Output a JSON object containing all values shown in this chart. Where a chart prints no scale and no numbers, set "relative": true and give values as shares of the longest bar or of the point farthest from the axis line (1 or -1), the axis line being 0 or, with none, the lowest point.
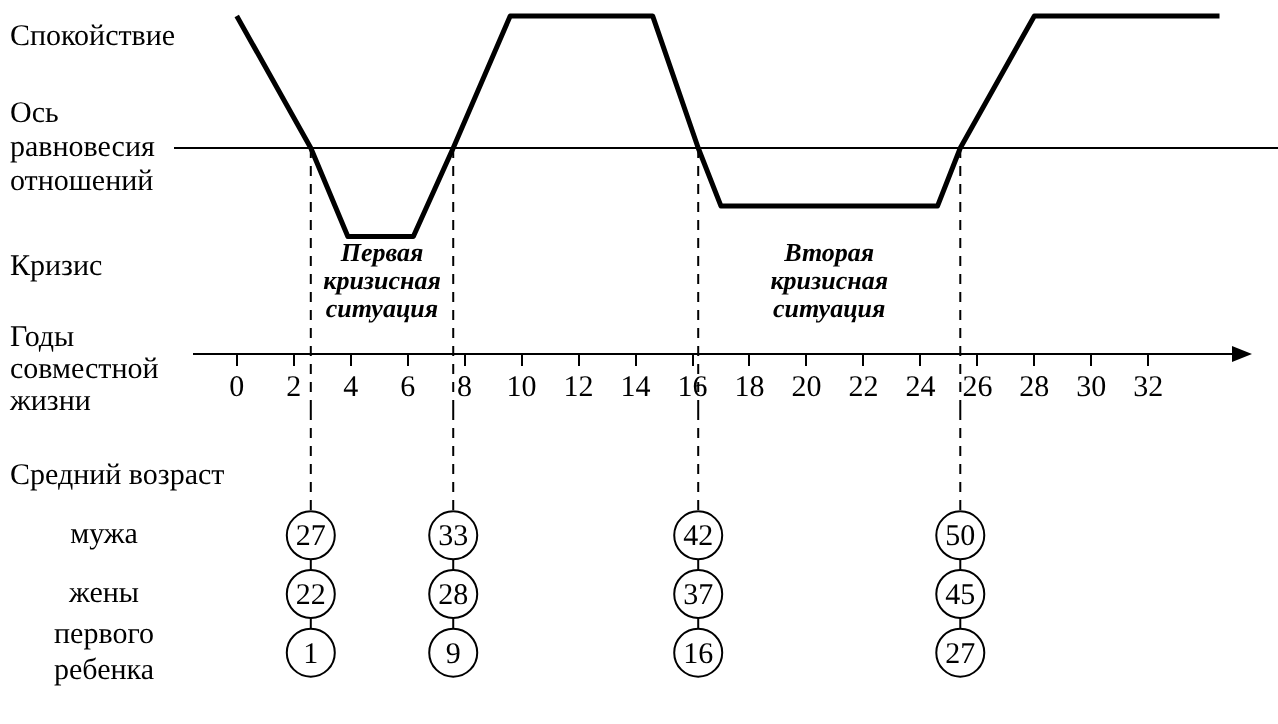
{
  "chart_data": [
    {
      "type": "line",
      "xlabel": "Годы совместной жизни",
      "relative": true,
      "x": [
        0,
        2.6,
        3.9,
        6.2,
        7.6,
        9.6,
        14.6,
        16.2,
        17,
        24.6,
        25.4,
        28,
        34.5
      ],
      "values": [
        1,
        0,
        -0.67,
        -0.67,
        0,
        1,
        1,
        0,
        -0.44,
        -0.44,
        0,
        1,
        1
      ],
      "color": "#000000",
      "marker": "none",
      "xlim": [
        -1.5,
        35.5
      ],
      "xticks": [
        0,
        2,
        4,
        6,
        8,
        10,
        12,
        14,
        16,
        18,
        20,
        22,
        24,
        26,
        28,
        30,
        32
      ],
      "ref_lines": [
        {
          "axis": "y",
          "value": 0,
          "label": "Ось равновесия отношений"
        },
        {
          "axis": "x",
          "value": 2.6,
          "line_style": "dashed"
        },
        {
          "axis": "x",
          "value": 7.6,
          "line_style": "dashed"
        },
        {
          "axis": "x",
          "value": 16.2,
          "line_style": "dashed"
        },
        {
          "axis": "x",
          "value": 25.4,
          "line_style": "dashed"
        }
      ],
      "annotations": [
        "Спокойствие",
        "Кризис",
        "Первая кризисная ситуация",
        "Вторая кризисная ситуация"
      ]
    },
    {
      "type": "other",
      "title": "Средний возраст",
      "y_categories": [
        "мужа",
        "жены",
        "первого ребенка"
      ],
      "annotations": [
        "27",
        "33",
        "42",
        "50",
        "22",
        "28",
        "37",
        "45",
        "1",
        "9",
        "16",
        "27"
      ]
    }
  ]
}
